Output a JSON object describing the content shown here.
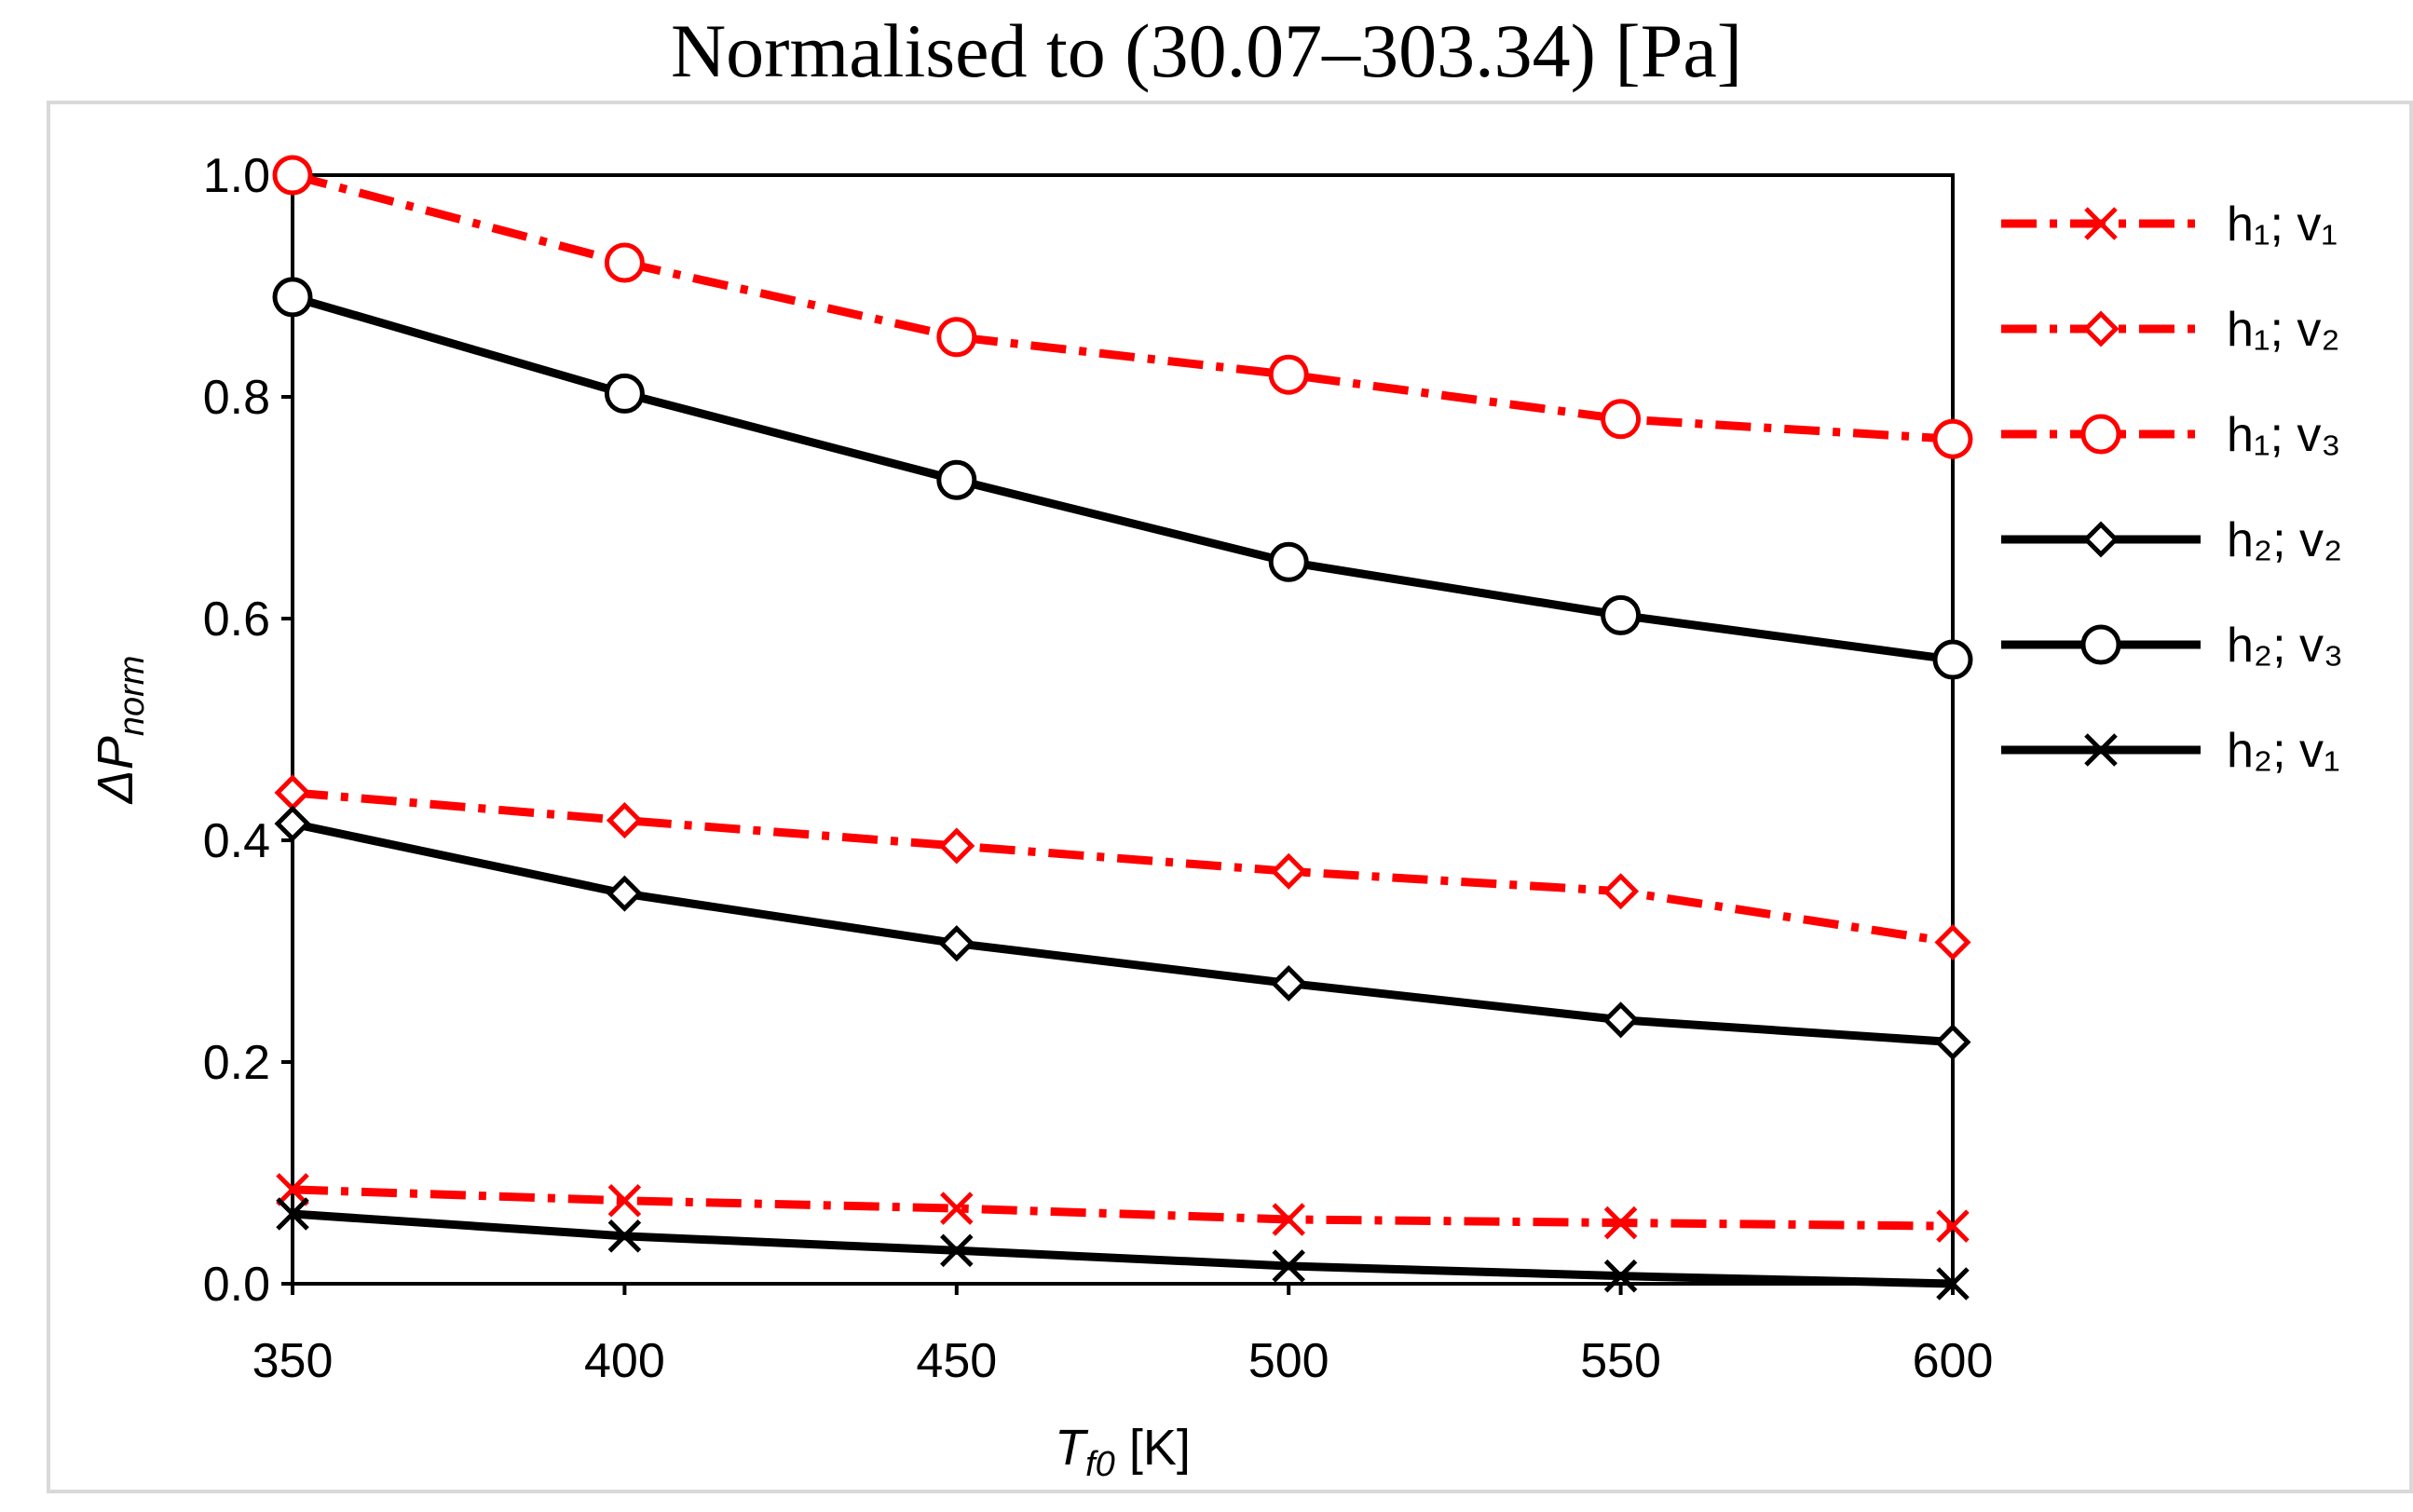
{
  "chart_data": {
    "type": "line",
    "title": "Normalised to (30.07–303.34) [Pa]",
    "xlabel": "T_f0 [K]",
    "xlabel_parts": {
      "symbol": "T",
      "subscript": "f0",
      "unit": " [K]"
    },
    "ylabel": "ΔP_norm",
    "ylabel_parts": {
      "symbol": "ΔP",
      "subscript": "norm"
    },
    "x": [
      350,
      400,
      450,
      500,
      550,
      600
    ],
    "xlim": [
      350,
      600
    ],
    "ylim": [
      0.0,
      1.0
    ],
    "x_ticks": [
      "350",
      "400",
      "450",
      "500",
      "550",
      "600"
    ],
    "y_ticks": [
      "0.0",
      "0.2",
      "0.4",
      "0.6",
      "0.8",
      "1.0"
    ],
    "grid": false,
    "legend_position": "right",
    "series": [
      {
        "name": "h₁; v₁",
        "color": "#ff0000",
        "line_style": "dashdot",
        "marker": "x",
        "values": [
          0.085,
          0.075,
          0.068,
          0.058,
          0.055,
          0.052
        ]
      },
      {
        "name": "h₁; v₂",
        "color": "#ff0000",
        "line_style": "dashdot",
        "marker": "diamond",
        "values": [
          0.443,
          0.418,
          0.395,
          0.372,
          0.354,
          0.308
        ]
      },
      {
        "name": "h₁; v₃",
        "color": "#ff0000",
        "line_style": "dashdot",
        "marker": "circle",
        "values": [
          1.0,
          0.921,
          0.854,
          0.82,
          0.78,
          0.762
        ]
      },
      {
        "name": "h₂; v₂",
        "color": "#000000",
        "line_style": "solid",
        "marker": "diamond",
        "values": [
          0.415,
          0.352,
          0.307,
          0.271,
          0.238,
          0.218
        ]
      },
      {
        "name": "h₂; v₃",
        "color": "#000000",
        "line_style": "solid",
        "marker": "circle",
        "values": [
          0.89,
          0.803,
          0.725,
          0.651,
          0.603,
          0.563
        ]
      },
      {
        "name": "h₂; v₁",
        "color": "#000000",
        "line_style": "solid",
        "marker": "x",
        "values": [
          0.063,
          0.043,
          0.03,
          0.016,
          0.007,
          0.0
        ]
      }
    ]
  }
}
